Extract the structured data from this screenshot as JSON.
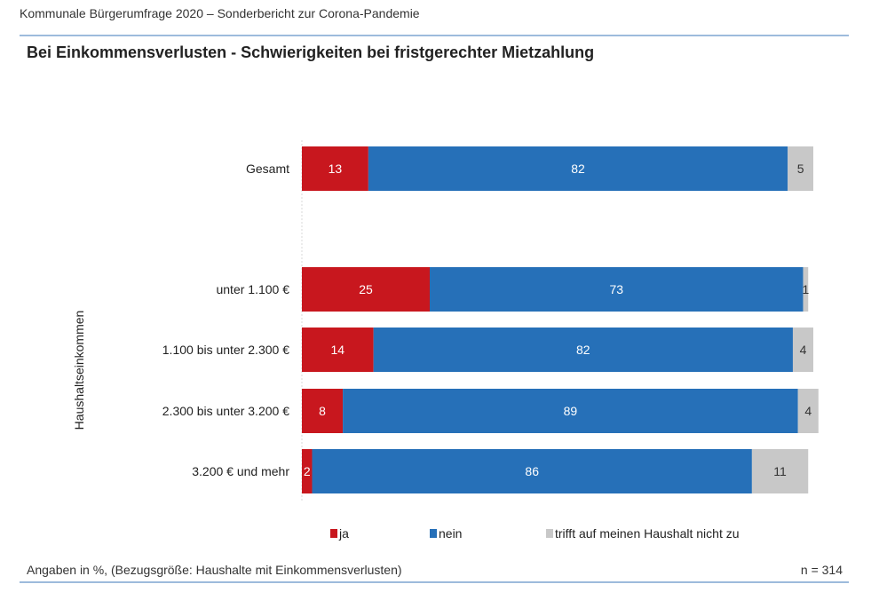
{
  "header": {
    "report_title": "Kommunale Bürgerumfrage 2020 – Sonderbericht zur Corona-Pandemie"
  },
  "chart_data": {
    "type": "bar",
    "orientation": "horizontal",
    "stacked": true,
    "title": "Bei Einkommensverlusten - Schwierigkeiten bei fristgerechter Mietzahlung",
    "ylabel": "Haushaltseinkommen",
    "xlim": [
      0,
      100
    ],
    "categories": [
      "Gesamt",
      "unter 1.100 €",
      "1.100 bis unter 2.300 €",
      "2.300 bis unter 3.200 €",
      "3.200 € und mehr"
    ],
    "series": [
      {
        "name": "ja",
        "color": "#C8171E",
        "values": [
          13,
          25,
          14,
          8,
          2
        ]
      },
      {
        "name": "nein",
        "color": "#2670B8",
        "values": [
          82,
          73,
          82,
          89,
          86
        ]
      },
      {
        "name": "trifft auf meinen Haushalt nicht zu",
        "color": "#C8C8C8",
        "values": [
          5,
          1,
          4,
          4,
          11
        ]
      }
    ],
    "legend_position": "bottom",
    "grid": false
  },
  "footer": {
    "note": "Angaben in %, (Bezugsgröße: Haushalte mit Einkommensverlusten)",
    "sample": "n = 314"
  }
}
